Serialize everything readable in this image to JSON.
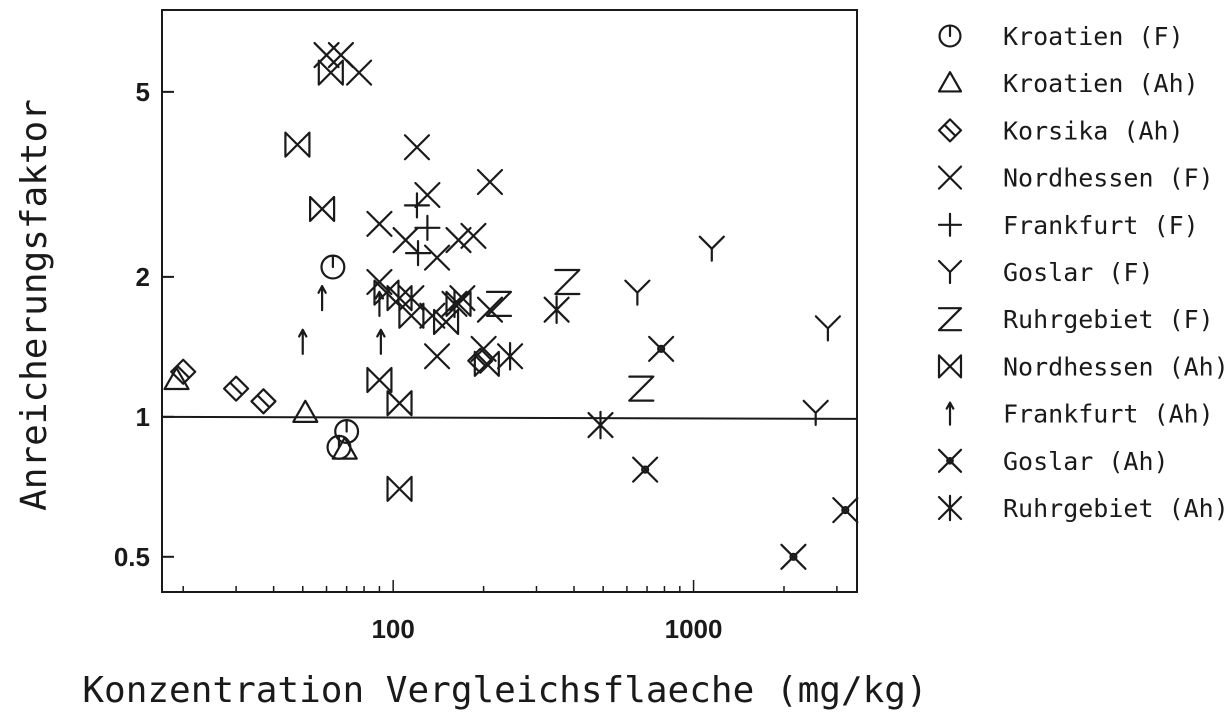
{
  "chart_data": {
    "type": "scatter",
    "title": "",
    "xlabel": "Konzentration Vergleichsflaeche (mg/kg)",
    "ylabel": "Anreicherungsfaktor",
    "x_scale": "log",
    "y_scale": "log",
    "xlim": [
      17,
      3500
    ],
    "ylim": [
      0.42,
      7.5
    ],
    "x_ticks": [
      {
        "value": 100,
        "label": "100"
      },
      {
        "value": 1000,
        "label": "1000"
      }
    ],
    "y_ticks": [
      {
        "value": 0.5,
        "label": "0.5"
      },
      {
        "value": 1,
        "label": "1"
      },
      {
        "value": 2,
        "label": "2"
      },
      {
        "value": 5,
        "label": "5"
      }
    ],
    "reference_line": {
      "y": 1
    },
    "grid": false,
    "legend_position": "right",
    "series": [
      {
        "name": "Kroatien (F)",
        "marker": "circle-bar",
        "points": [
          [
            63,
            2.1
          ],
          [
            70,
            0.93
          ],
          [
            66,
            0.86
          ]
        ]
      },
      {
        "name": "Kroatien (Ah)",
        "marker": "triangle",
        "points": [
          [
            19,
            1.2
          ],
          [
            51,
            1.02
          ],
          [
            69,
            0.85
          ]
        ]
      },
      {
        "name": "Korsika (Ah)",
        "marker": "diamond",
        "points": [
          [
            20,
            1.25
          ],
          [
            30,
            1.15
          ],
          [
            37,
            1.08
          ],
          [
            195,
            1.32
          ]
        ]
      },
      {
        "name": "Nordhessen (F)",
        "marker": "x",
        "points": [
          [
            60,
            6.0
          ],
          [
            67,
            6.0
          ],
          [
            77,
            5.5
          ],
          [
            120,
            3.8
          ],
          [
            130,
            3.0
          ],
          [
            210,
            3.2
          ],
          [
            90,
            2.6
          ],
          [
            110,
            2.4
          ],
          [
            140,
            2.2
          ],
          [
            165,
            2.4
          ],
          [
            185,
            2.45
          ],
          [
            90,
            1.95
          ],
          [
            115,
            1.8
          ],
          [
            135,
            1.65
          ],
          [
            170,
            1.8
          ],
          [
            140,
            1.35
          ],
          [
            200,
            1.4
          ],
          [
            210,
            1.7
          ]
        ]
      },
      {
        "name": "Frankfurt (F)",
        "marker": "plus",
        "points": [
          [
            120,
            2.85
          ],
          [
            130,
            2.55
          ],
          [
            121,
            2.25
          ]
        ]
      },
      {
        "name": "Goslar (F)",
        "marker": "y",
        "points": [
          [
            650,
            1.85
          ],
          [
            1150,
            2.3
          ],
          [
            2800,
            1.55
          ],
          [
            2550,
            1.02
          ]
        ]
      },
      {
        "name": "Ruhrgebiet (F)",
        "marker": "z",
        "points": [
          [
            225,
            1.75
          ],
          [
            380,
            1.95
          ],
          [
            670,
            1.15
          ]
        ]
      },
      {
        "name": "Nordhessen (Ah)",
        "marker": "bowtie",
        "points": [
          [
            48,
            3.85
          ],
          [
            62,
            5.5
          ],
          [
            58,
            2.8
          ],
          [
            95,
            1.85
          ],
          [
            115,
            1.65
          ],
          [
            150,
            1.6
          ],
          [
            105,
            1.8
          ],
          [
            165,
            1.75
          ],
          [
            205,
            1.3
          ],
          [
            90,
            1.2
          ],
          [
            105,
            1.07
          ],
          [
            105,
            0.7
          ]
        ]
      },
      {
        "name": "Frankfurt (Ah)",
        "marker": "arrow",
        "points": [
          [
            58,
            1.8
          ],
          [
            90,
            1.75
          ],
          [
            50,
            1.45
          ],
          [
            91,
            1.45
          ]
        ]
      },
      {
        "name": "Goslar (Ah)",
        "marker": "x-dot",
        "points": [
          [
            780,
            1.4
          ],
          [
            690,
            0.77
          ],
          [
            2150,
            0.5
          ],
          [
            3200,
            0.63
          ]
        ]
      },
      {
        "name": "Ruhrgebiet (Ah)",
        "marker": "asterisk",
        "points": [
          [
            160,
            1.75
          ],
          [
            245,
            1.35
          ],
          [
            350,
            1.7
          ],
          [
            490,
            0.96
          ]
        ]
      }
    ]
  }
}
